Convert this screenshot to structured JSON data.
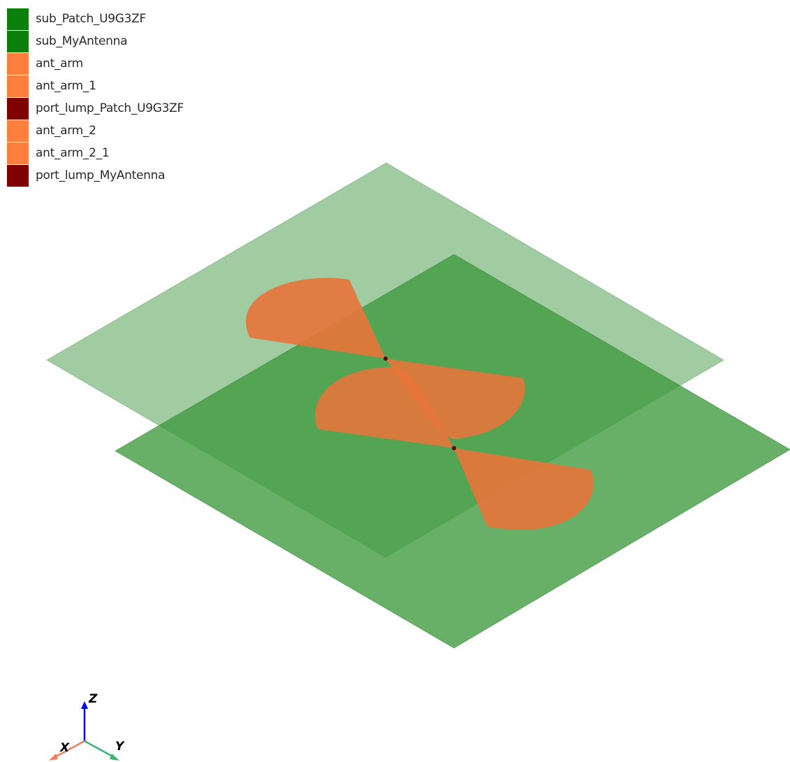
{
  "legend": {
    "items": [
      {
        "label": "sub_Patch_U9G3ZF",
        "color": "#0c7f0c"
      },
      {
        "label": "sub_MyAntenna",
        "color": "#0c7f0c"
      },
      {
        "label": "ant_arm",
        "color": "#ff7f3f"
      },
      {
        "label": "ant_arm_1",
        "color": "#ff7f3f"
      },
      {
        "label": "port_lump_Patch_U9G3ZF",
        "color": "#7f0000"
      },
      {
        "label": "ant_arm_2",
        "color": "#ff7f3f"
      },
      {
        "label": "ant_arm_2_1",
        "color": "#ff7f3f"
      },
      {
        "label": "port_lump_MyAntenna",
        "color": "#7f0000"
      }
    ]
  },
  "colors": {
    "substrate_upper": "#6fb06f",
    "substrate_lower": "#3e9a3e",
    "antenna_arm": "#e8743a",
    "port": "#5a0000",
    "axis_x": "#f08060",
    "axis_y": "#3cb371",
    "axis_z": "#0000ff"
  },
  "triad": {
    "x_label": "X",
    "y_label": "Y",
    "z_label": "Z"
  }
}
